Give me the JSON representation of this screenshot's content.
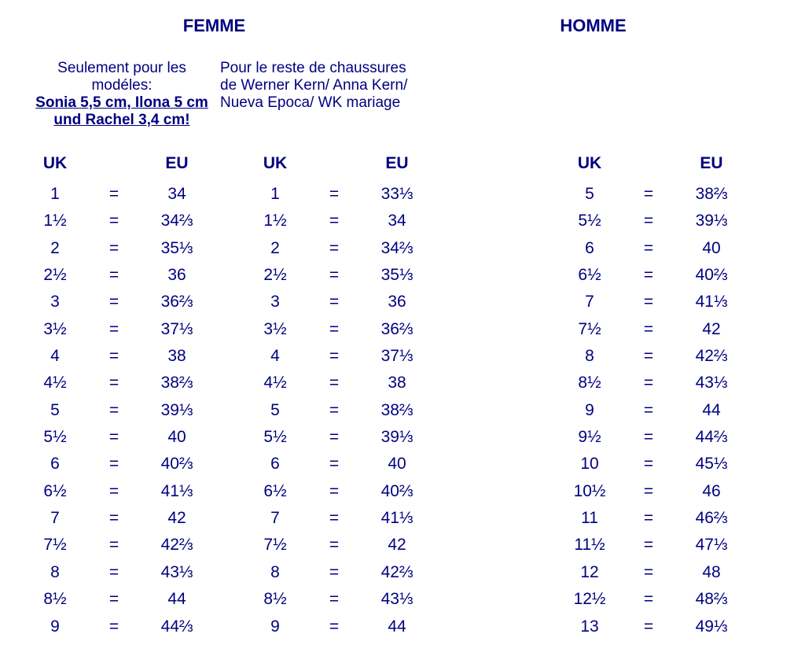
{
  "headers": {
    "femme": "FEMME",
    "homme": "HOMME"
  },
  "subheaders": {
    "col1_line1": "Seulement pour les",
    "col1_line2": "modéles:",
    "col1_line3": "Sonia 5,5 cm, Ilona 5 cm",
    "col1_line4": "und Rachel 3,4 cm!",
    "col2_line1": "Pour le reste de chaussures",
    "col2_line2": "de Werner Kern/ Anna Kern/",
    "col2_line3": "Nueva Epoca/ WK mariage"
  },
  "column_labels": {
    "uk": "UK",
    "eu": "EU",
    "eq": "="
  },
  "femme_a": {
    "rows": [
      {
        "uk": "1",
        "eu": "34"
      },
      {
        "uk": "1½",
        "eu": "34⅔"
      },
      {
        "uk": "2",
        "eu": "35⅓"
      },
      {
        "uk": "2½",
        "eu": "36"
      },
      {
        "uk": "3",
        "eu": "36⅔"
      },
      {
        "uk": "3½",
        "eu": "37⅓"
      },
      {
        "uk": "4",
        "eu": "38"
      },
      {
        "uk": "4½",
        "eu": "38⅔"
      },
      {
        "uk": "5",
        "eu": "39⅓"
      },
      {
        "uk": "5½",
        "eu": "40"
      },
      {
        "uk": "6",
        "eu": "40⅔"
      },
      {
        "uk": "6½",
        "eu": "41⅓"
      },
      {
        "uk": "7",
        "eu": "42"
      },
      {
        "uk": "7½",
        "eu": "42⅔"
      },
      {
        "uk": "8",
        "eu": "43⅓"
      },
      {
        "uk": "8½",
        "eu": "44"
      },
      {
        "uk": "9",
        "eu": "44⅔"
      }
    ]
  },
  "femme_b": {
    "rows": [
      {
        "uk": "1",
        "eu": "33⅓"
      },
      {
        "uk": "1½",
        "eu": "34"
      },
      {
        "uk": "2",
        "eu": "34⅔"
      },
      {
        "uk": "2½",
        "eu": "35⅓"
      },
      {
        "uk": "3",
        "eu": "36"
      },
      {
        "uk": "3½",
        "eu": "36⅔"
      },
      {
        "uk": "4",
        "eu": "37⅓"
      },
      {
        "uk": "4½",
        "eu": "38"
      },
      {
        "uk": "5",
        "eu": "38⅔"
      },
      {
        "uk": "5½",
        "eu": "39⅓"
      },
      {
        "uk": "6",
        "eu": "40"
      },
      {
        "uk": "6½",
        "eu": "40⅔"
      },
      {
        "uk": "7",
        "eu": "41⅓"
      },
      {
        "uk": "7½",
        "eu": "42"
      },
      {
        "uk": "8",
        "eu": "42⅔"
      },
      {
        "uk": "8½",
        "eu": "43⅓"
      },
      {
        "uk": "9",
        "eu": "44"
      }
    ]
  },
  "homme": {
    "rows": [
      {
        "uk": "5",
        "eu": "38⅔"
      },
      {
        "uk": "5½",
        "eu": "39⅓"
      },
      {
        "uk": "6",
        "eu": "40"
      },
      {
        "uk": "6½",
        "eu": "40⅔"
      },
      {
        "uk": "7",
        "eu": "41⅓"
      },
      {
        "uk": "7½",
        "eu": "42"
      },
      {
        "uk": "8",
        "eu": "42⅔"
      },
      {
        "uk": "8½",
        "eu": "43⅓"
      },
      {
        "uk": "9",
        "eu": "44"
      },
      {
        "uk": "9½",
        "eu": "44⅔"
      },
      {
        "uk": "10",
        "eu": "45⅓"
      },
      {
        "uk": "10½",
        "eu": "46"
      },
      {
        "uk": "11",
        "eu": "46⅔"
      },
      {
        "uk": "11½",
        "eu": "47⅓"
      },
      {
        "uk": "12",
        "eu": "48"
      },
      {
        "uk": "12½",
        "eu": "48⅔"
      },
      {
        "uk": "13",
        "eu": "49⅓"
      }
    ]
  },
  "style": {
    "text_color": "#000080",
    "background_color": "#ffffff",
    "font_family": "Arial, Helvetica, sans-serif",
    "header_fontsize": 22,
    "body_fontsize": 21,
    "subheader_fontsize": 19
  }
}
